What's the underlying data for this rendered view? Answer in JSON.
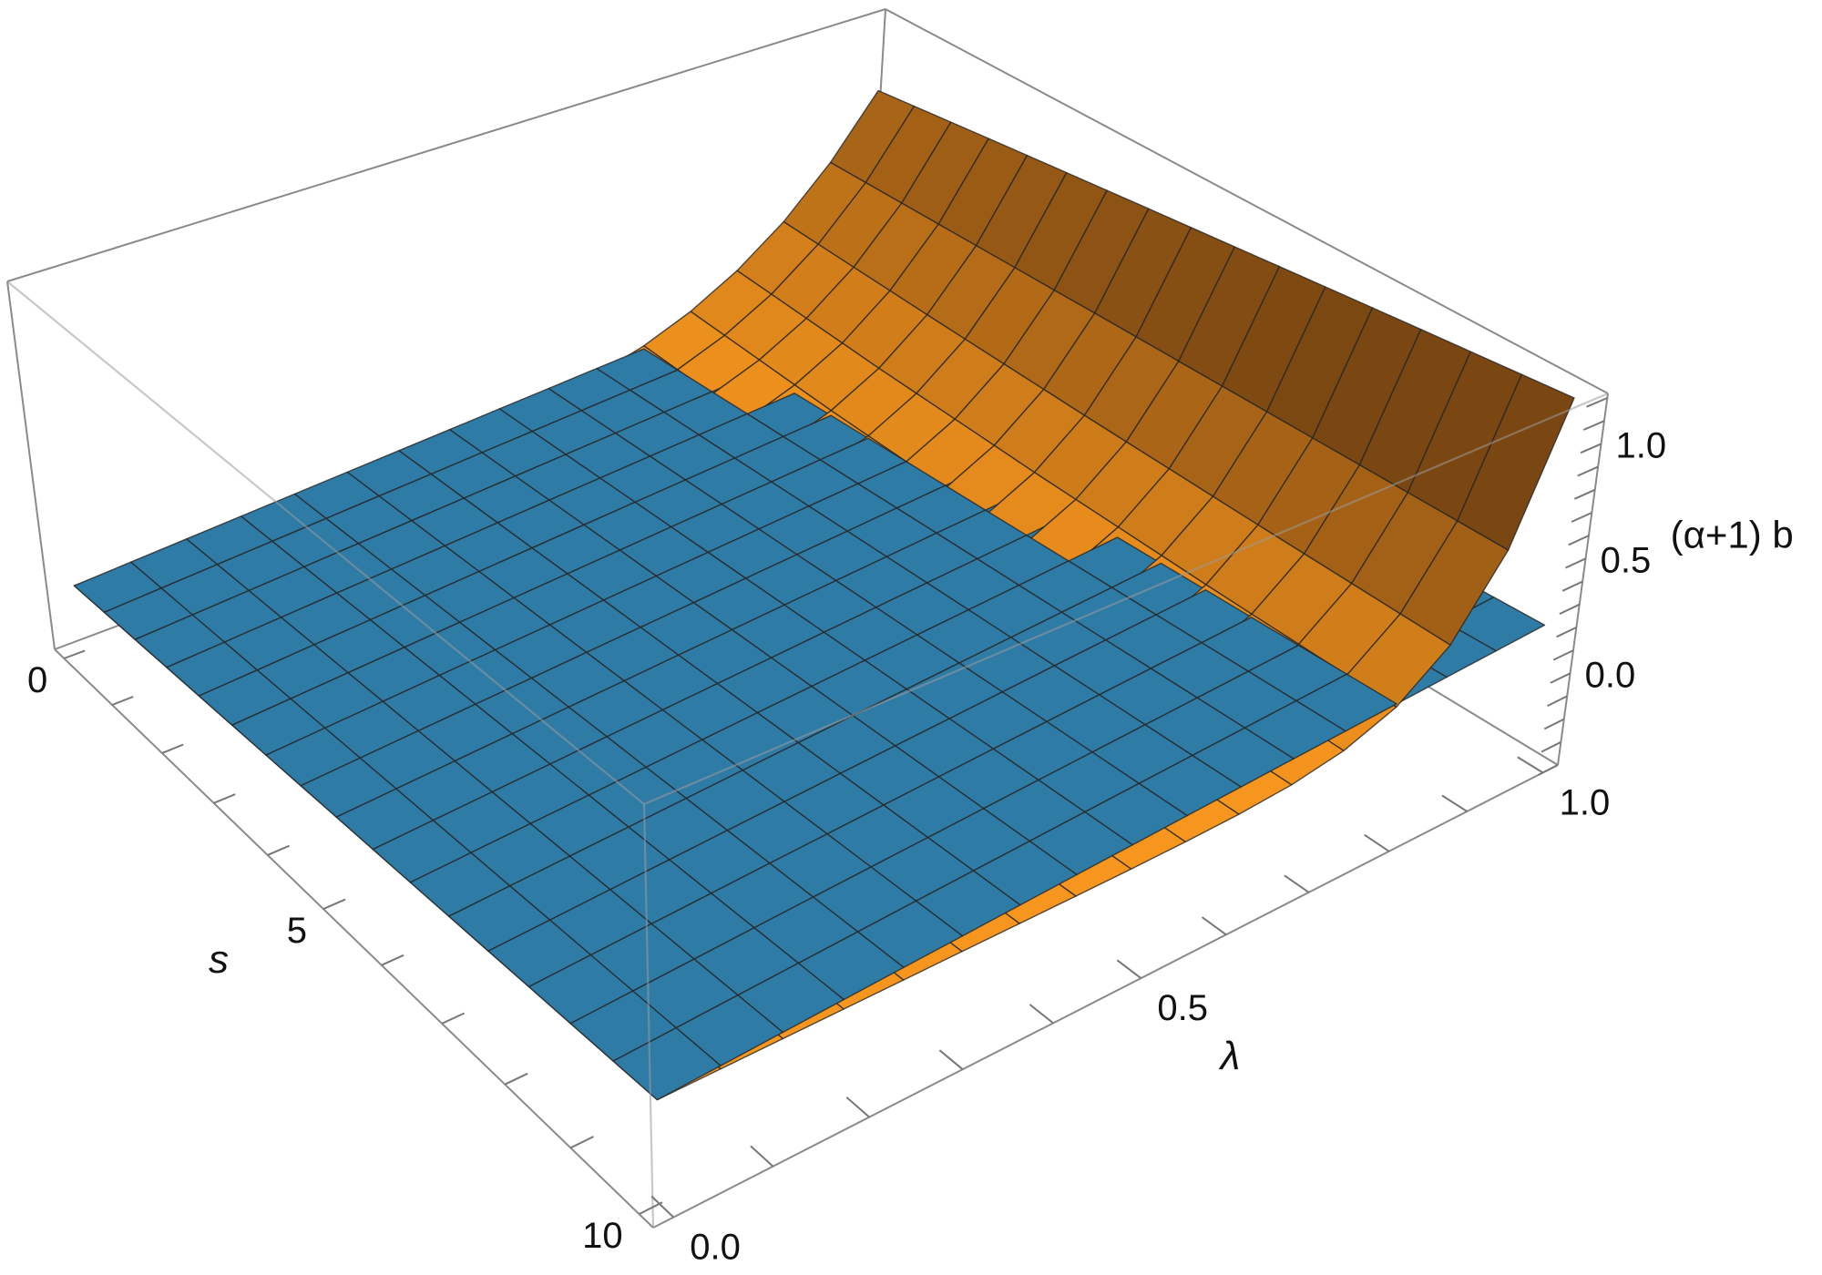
{
  "chart_data": {
    "type": "surface3d",
    "axes": {
      "s": {
        "label": "s",
        "range": [
          0,
          10
        ],
        "ticks": [
          0,
          5,
          10
        ],
        "tick_labels": [
          "0",
          "5",
          "10"
        ],
        "minor_step": 1
      },
      "lambda": {
        "label": "λ",
        "range": [
          0,
          1
        ],
        "ticks": [
          0,
          0.5,
          1
        ],
        "tick_labels": [
          "0.0",
          "0.5",
          "1.0"
        ],
        "minor_step": 0.1
      },
      "z": {
        "label": "(α+1) b",
        "range": [
          -0.4,
          1.22
        ],
        "ticks": [
          0,
          0.5,
          1
        ],
        "tick_labels": [
          "0.0",
          "0.5",
          "1.0"
        ],
        "minor_step": 0.1
      }
    },
    "mesh_lines_per_direction": 15,
    "boxed": true,
    "series": [
      {
        "color": "#2e7ba6",
        "shading": "flat",
        "s": [
          0,
          10
        ],
        "lambda": [
          0,
          1
        ],
        "z": [
          [
            -0.11,
            0.09
          ],
          [
            0.0,
            0.2
          ]
        ]
      },
      {
        "color": "#f7961e",
        "shade_color": "#7a4712",
        "shading": "lit",
        "s": [
          0,
          2.5,
          5,
          7.5,
          10
        ],
        "lambda": [
          0,
          0.0625,
          0.125,
          0.1875,
          0.25,
          0.3125,
          0.375,
          0.4375,
          0.5,
          0.5625,
          0.625,
          0.6875,
          0.75,
          0.8125,
          0.875,
          0.9375,
          1
        ],
        "z": [
          [
            -0.11,
            -0.11,
            -0.11,
            -0.11,
            -0.109,
            -0.107,
            -0.103,
            -0.094,
            -0.079,
            -0.054,
            -0.016,
            0.042,
            0.125,
            0.241,
            0.398,
            0.607,
            0.88
          ],
          [
            -0.083,
            -0.083,
            -0.083,
            -0.082,
            -0.082,
            -0.082,
            -0.08,
            -0.077,
            -0.069,
            -0.054,
            -0.027,
            0.017,
            0.09,
            0.202,
            0.369,
            0.612,
            0.958
          ],
          [
            -0.055,
            -0.055,
            -0.055,
            -0.055,
            -0.055,
            -0.055,
            -0.054,
            -0.053,
            -0.049,
            -0.04,
            -0.023,
            0.011,
            0.071,
            0.175,
            0.345,
            0.617,
            1.035
          ],
          [
            -0.028,
            -0.028,
            -0.028,
            -0.028,
            -0.028,
            -0.028,
            -0.027,
            -0.027,
            -0.025,
            -0.02,
            -0.009,
            0.015,
            0.064,
            0.158,
            0.327,
            0.621,
            1.113
          ],
          [
            0.0,
            0.0,
            0.0,
            0.0,
            0.0,
            0.0,
            0.0,
            0.0,
            0.001,
            0.004,
            0.011,
            0.028,
            0.067,
            0.149,
            0.313,
            0.624,
            1.19
          ]
        ]
      }
    ]
  }
}
